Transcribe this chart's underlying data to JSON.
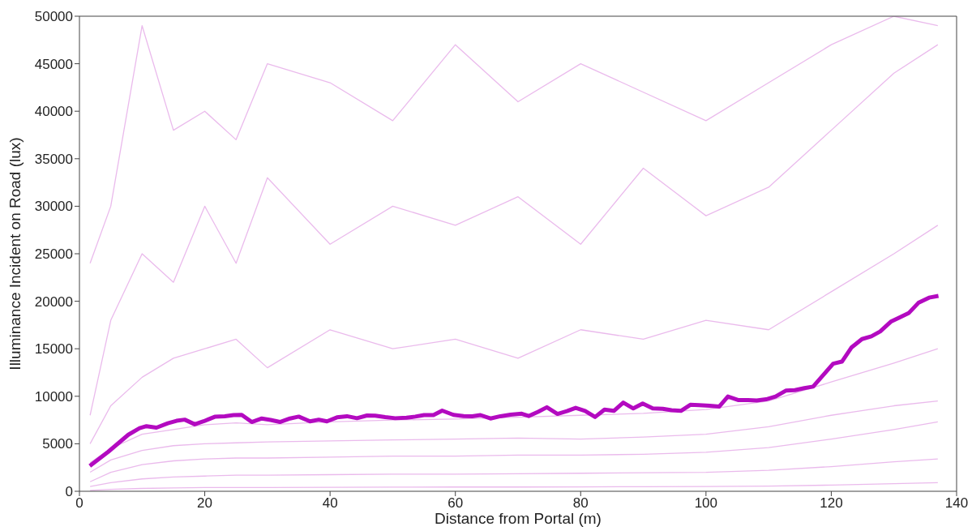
{
  "chart_data": {
    "type": "line",
    "xlabel": "Distance from Portal (m)",
    "ylabel": "Illuminance Incident on Road (lux)",
    "xlim": [
      0,
      140
    ],
    "xticks": [
      0,
      20,
      40,
      60,
      80,
      100,
      120,
      140
    ],
    "ylim": [
      0,
      50000
    ],
    "yticks": [
      0,
      5000,
      10000,
      15000,
      20000,
      25000,
      30000,
      35000,
      40000,
      45000,
      50000
    ],
    "grid": false,
    "marker": "none",
    "line_style": "solid",
    "series": [
      {
        "color": "#e3a3e6",
        "x": [
          1.7,
          5,
          10,
          15,
          20,
          25,
          30,
          40,
          50,
          60,
          70,
          80,
          90,
          100,
          110,
          120,
          130,
          137
        ],
        "values": [
          100,
          200,
          300,
          350,
          400,
          400,
          400,
          420,
          430,
          450,
          450,
          460,
          480,
          500,
          550,
          650,
          800,
          900
        ]
      },
      {
        "color": "#e3a3e6",
        "x": [
          1.7,
          5,
          10,
          15,
          20,
          25,
          30,
          40,
          50,
          60,
          70,
          80,
          90,
          100,
          110,
          120,
          130,
          137
        ],
        "values": [
          500,
          900,
          1300,
          1500,
          1600,
          1700,
          1700,
          1750,
          1800,
          1800,
          1850,
          1900,
          1950,
          2000,
          2200,
          2600,
          3100,
          3400
        ]
      },
      {
        "color": "#e3a3e6",
        "x": [
          1.7,
          5,
          10,
          15,
          20,
          25,
          30,
          40,
          50,
          60,
          70,
          80,
          90,
          100,
          110,
          120,
          130,
          137
        ],
        "values": [
          1000,
          2000,
          2800,
          3200,
          3400,
          3500,
          3500,
          3600,
          3700,
          3700,
          3800,
          3800,
          3900,
          4100,
          4600,
          5500,
          6500,
          7300
        ]
      },
      {
        "color": "#e3a3e6",
        "x": [
          1.7,
          5,
          10,
          15,
          20,
          25,
          30,
          40,
          50,
          60,
          70,
          80,
          90,
          100,
          110,
          120,
          130,
          137
        ],
        "values": [
          2000,
          3300,
          4300,
          4800,
          5000,
          5100,
          5200,
          5300,
          5400,
          5500,
          5600,
          5500,
          5700,
          6000,
          6800,
          8000,
          9000,
          9500
        ]
      },
      {
        "color": "#e3a3e6",
        "x": [
          1.7,
          5,
          10,
          15,
          20,
          25,
          30,
          40,
          50,
          60,
          70,
          80,
          90,
          100,
          110,
          120,
          130,
          137
        ],
        "values": [
          3000,
          4500,
          6000,
          6500,
          7000,
          7200,
          7000,
          7300,
          7500,
          7600,
          7800,
          8000,
          8200,
          8600,
          9500,
          11500,
          13500,
          15000
        ]
      },
      {
        "color": "#e3a3e6",
        "x": [
          1.7,
          5,
          10,
          15,
          20,
          25,
          30,
          40,
          50,
          60,
          70,
          80,
          90,
          100,
          110,
          120,
          130,
          137
        ],
        "values": [
          5000,
          9000,
          12000,
          14000,
          15000,
          16000,
          13000,
          17000,
          15000,
          16000,
          14000,
          17000,
          16000,
          18000,
          17000,
          21000,
          25000,
          28000
        ]
      },
      {
        "color": "#e3a3e6",
        "x": [
          1.7,
          5,
          10,
          15,
          20,
          25,
          30,
          40,
          50,
          60,
          70,
          80,
          90,
          100,
          110,
          120,
          130,
          137
        ],
        "values": [
          8000,
          18000,
          25000,
          22000,
          30000,
          24000,
          33000,
          26000,
          30000,
          28000,
          31000,
          26000,
          34000,
          29000,
          32000,
          38000,
          44000,
          47000
        ]
      },
      {
        "color": "#e3a3e6",
        "x": [
          1.7,
          5,
          10,
          15,
          20,
          25,
          30,
          40,
          50,
          60,
          70,
          80,
          90,
          100,
          110,
          120,
          130,
          137
        ],
        "values": [
          24000,
          30000,
          49000,
          38000,
          40000,
          37000,
          45000,
          43000,
          39000,
          47000,
          41000,
          45000,
          42000,
          39000,
          43000,
          47000,
          50000,
          49000
        ]
      },
      {
        "color": "#b30ac0",
        "x": [
          1.65,
          4.6,
          7.8,
          9.6,
          10.7,
          12.3,
          14.1,
          15.5,
          16.8,
          18.4,
          19.8,
          21.6,
          23.2,
          24.6,
          25.9,
          27.5,
          29.1,
          30.5,
          32.0,
          33.6,
          35.0,
          36.8,
          38.2,
          39.5,
          41.1,
          42.7,
          44.3,
          45.9,
          47.2,
          48.8,
          50.4,
          52.2,
          53.6,
          55.0,
          56.5,
          57.9,
          59.7,
          61.3,
          62.7,
          64.0,
          65.6,
          67.2,
          68.8,
          70.6,
          71.7,
          73.2,
          74.6,
          76.3,
          77.8,
          79.2,
          80.7,
          82.3,
          83.8,
          85.3,
          86.8,
          88.4,
          89.9,
          91.5,
          93.1,
          94.5,
          96.0,
          97.5,
          98.9,
          100.6,
          102.1,
          103.5,
          105.2,
          106.7,
          108.1,
          109.6,
          111.1,
          112.8,
          114.2,
          115.7,
          117.1,
          118.8,
          120.3,
          121.7,
          123.2,
          124.9,
          126.4,
          127.8,
          129.5,
          131.0,
          132.4,
          133.9,
          135.6,
          137.1
        ],
        "values": [
          2670,
          4160,
          5950,
          6640,
          6850,
          6700,
          7150,
          7420,
          7540,
          7050,
          7360,
          7840,
          7900,
          8020,
          8040,
          7290,
          7660,
          7510,
          7290,
          7660,
          7860,
          7360,
          7540,
          7360,
          7780,
          7900,
          7690,
          7980,
          7960,
          7800,
          7690,
          7740,
          7860,
          8020,
          8020,
          8490,
          8040,
          7920,
          7900,
          8020,
          7660,
          7900,
          8070,
          8160,
          7920,
          8360,
          8840,
          8140,
          8430,
          8780,
          8460,
          7820,
          8590,
          8460,
          9330,
          8720,
          9230,
          8720,
          8680,
          8530,
          8460,
          9100,
          9070,
          9010,
          8910,
          9970,
          9590,
          9590,
          9550,
          9680,
          9970,
          10610,
          10640,
          10860,
          11020,
          12300,
          13430,
          13650,
          15120,
          16020,
          16310,
          16820,
          17850,
          18330,
          18780,
          19830,
          20380,
          20570
        ]
      }
    ]
  }
}
